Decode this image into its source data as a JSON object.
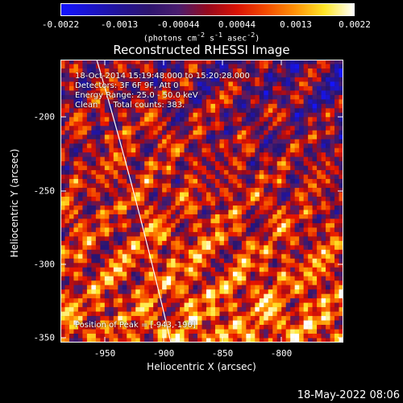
{
  "colorbar": {
    "ticks": [
      "-0.0022",
      "-0.0013",
      "-0.00044",
      "0.00044",
      "0.0013",
      "0.0022"
    ],
    "units_prefix": "(photons cm",
    "units_exp1": "-2",
    "units_mid1": " s",
    "units_exp2": "-1",
    "units_mid2": " asec",
    "units_exp3": "-2",
    "units_suffix": ")"
  },
  "title": "Reconstructed RHESSI Image",
  "annotations": {
    "time": "18-Oct-2014 15:19:48.000 to 15:20:28.000",
    "detectors": "Detectors: 3F 6F 9F, Att 0",
    "energy": "Energy Range: 25.0 - 50.0 keV",
    "clean": "Clean      Total counts: 383.",
    "peak": "Position of Peak = [-943,-190]"
  },
  "axes": {
    "xlabel": "Heliocentric X (arcsec)",
    "ylabel": "Heliocentric Y (arcsec)",
    "xticks": [
      "-950",
      "-900",
      "-850",
      "-800"
    ],
    "yticks": [
      "-200",
      "-250",
      "-300",
      "-350"
    ]
  },
  "footer": "18-May-2022 08:06",
  "colors": {
    "limb": "#ffffff",
    "frame": "#ffffff"
  }
}
